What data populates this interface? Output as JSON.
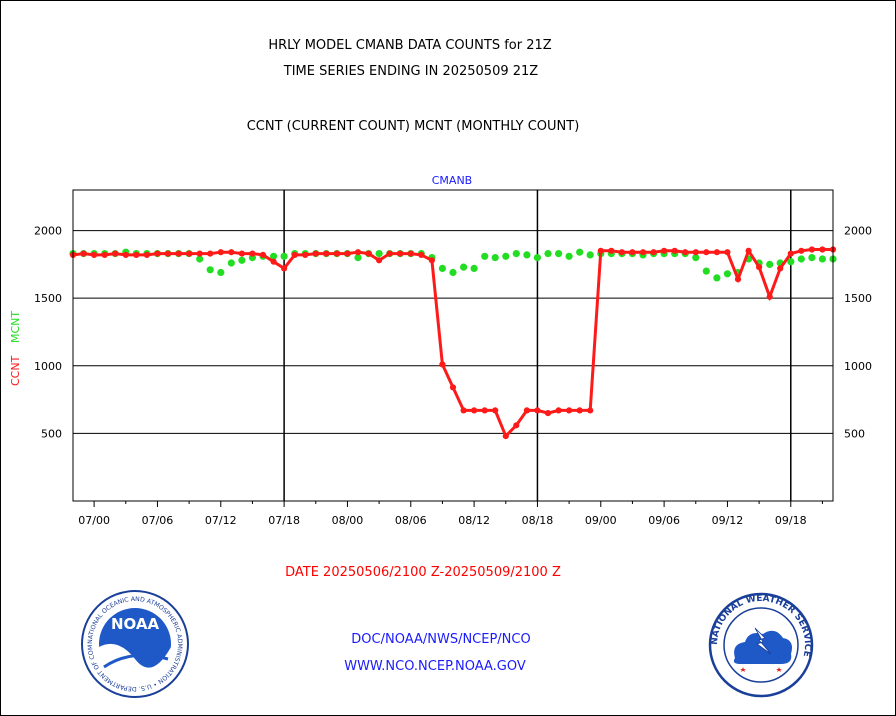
{
  "title_line1": "HRLY MODEL CMANB DATA COUNTS for 21Z",
  "title_line2": "TIME SERIES ENDING IN 20250509 21Z",
  "subtitle": "CCNT (CURRENT COUNT) MCNT (MONTHLY COUNT)",
  "date_range": "DATE 20250506/2100 Z-20250509/2100 Z",
  "footer": {
    "line1": "DOC/NOAA/NWS/NCEP/NCO",
    "line2": "WWW.NCO.NCEP.NOAA.GOV"
  },
  "logos": {
    "noaa": "NOAA",
    "noaa_ring": "NATIONAL OCEANIC AND ATMOSPHERIC ADMINISTRATION • U.S. DEPARTMENT OF COMMERCE",
    "nws_ring": "NATIONAL WEATHER SERVICE"
  },
  "colors": {
    "ccnt": "#ff1a1a",
    "mcnt": "#22dd22",
    "title": "#000000",
    "date": "#ff0000",
    "url": "#1a1aff",
    "series_label": "#1a1aff"
  },
  "chart_data": {
    "type": "line",
    "panel_label": "CMANB",
    "ylabel_ccnt": "CCNT",
    "ylabel_mcnt": "MCNT",
    "categories": [
      "07/00",
      "07/06",
      "07/12",
      "07/18",
      "08/00",
      "08/06",
      "08/12",
      "08/18",
      "09/00",
      "09/06",
      "09/12",
      "09/18"
    ],
    "x_unit": "hour offset from 2025-05-07 00Z",
    "xlim": [
      -2,
      70
    ],
    "ylim": [
      0,
      2300
    ],
    "yticks": [
      500,
      1000,
      1500,
      2000
    ],
    "day_boundaries": [
      18,
      42,
      66
    ],
    "grid": true,
    "series": [
      {
        "name": "CCNT",
        "x": [
          -2,
          -1,
          0,
          1,
          2,
          3,
          4,
          5,
          6,
          7,
          8,
          9,
          10,
          11,
          12,
          13,
          14,
          15,
          16,
          17,
          18,
          19,
          20,
          21,
          22,
          23,
          24,
          25,
          26,
          27,
          28,
          29,
          30,
          31,
          32,
          33,
          34,
          35,
          36,
          37,
          38,
          39,
          40,
          41,
          42,
          43,
          44,
          45,
          46,
          47,
          48,
          49,
          50,
          51,
          52,
          53,
          54,
          55,
          56,
          57,
          58,
          59,
          60,
          61,
          62,
          63,
          64,
          65,
          66,
          67,
          68,
          69,
          70
        ],
        "values": [
          1820,
          1830,
          1820,
          1820,
          1830,
          1820,
          1820,
          1820,
          1830,
          1830,
          1830,
          1830,
          1830,
          1830,
          1840,
          1840,
          1830,
          1830,
          1820,
          1770,
          1720,
          1820,
          1820,
          1830,
          1830,
          1830,
          1830,
          1840,
          1830,
          1780,
          1830,
          1830,
          1830,
          1820,
          1780,
          1010,
          840,
          670,
          670,
          670,
          670,
          480,
          560,
          670,
          670,
          650,
          670,
          670,
          670,
          670,
          1850,
          1850,
          1840,
          1840,
          1840,
          1840,
          1850,
          1850,
          1840,
          1840,
          1840,
          1840,
          1840,
          1640,
          1850,
          1730,
          1510,
          1720,
          1830,
          1850,
          1860,
          1860,
          1860
        ]
      },
      {
        "name": "MCNT",
        "x": [
          -2,
          -1,
          0,
          1,
          2,
          3,
          4,
          5,
          6,
          7,
          8,
          9,
          10,
          11,
          12,
          13,
          14,
          15,
          16,
          17,
          18,
          19,
          20,
          21,
          22,
          23,
          24,
          25,
          26,
          27,
          28,
          29,
          30,
          31,
          32,
          33,
          34,
          35,
          36,
          37,
          38,
          39,
          40,
          41,
          42,
          43,
          44,
          45,
          46,
          47,
          48,
          49,
          50,
          51,
          52,
          53,
          54,
          55,
          56,
          57,
          58,
          59,
          60,
          61,
          62,
          63,
          64,
          65,
          66,
          67,
          68,
          69,
          70
        ],
        "values": [
          1830,
          1830,
          1830,
          1830,
          1830,
          1840,
          1830,
          1830,
          1830,
          1830,
          1830,
          1830,
          1790,
          1710,
          1690,
          1760,
          1780,
          1800,
          1810,
          1810,
          1810,
          1830,
          1830,
          1830,
          1830,
          1830,
          1830,
          1800,
          1830,
          1830,
          1830,
          1830,
          1830,
          1830,
          1800,
          1720,
          1690,
          1730,
          1720,
          1810,
          1800,
          1810,
          1830,
          1820,
          1800,
          1830,
          1830,
          1810,
          1840,
          1820,
          1830,
          1830,
          1830,
          1830,
          1820,
          1830,
          1830,
          1830,
          1830,
          1800,
          1700,
          1650,
          1680,
          1690,
          1790,
          1760,
          1750,
          1760,
          1770,
          1790,
          1800,
          1790,
          1790
        ]
      }
    ]
  }
}
